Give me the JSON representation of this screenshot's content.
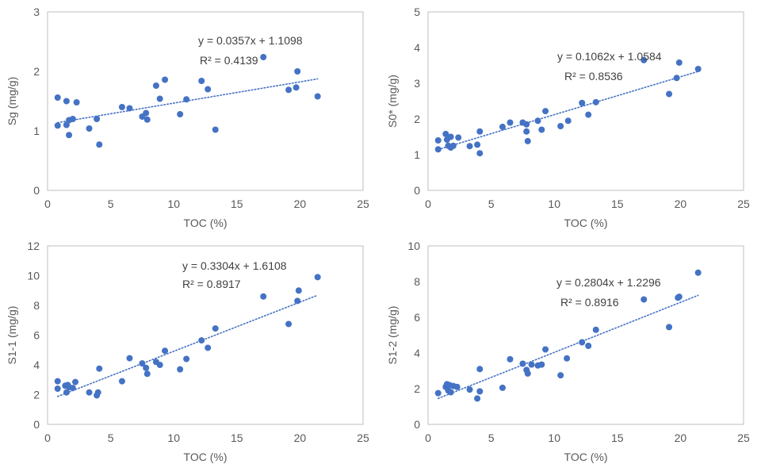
{
  "chart_data": [
    {
      "type": "scatter",
      "ylabel": "Sg (mg/g)",
      "xlabel": "TOC (%)",
      "xlim": [
        0,
        25
      ],
      "ylim": [
        0,
        3
      ],
      "xticks": [
        "0",
        "5",
        "10",
        "15",
        "20",
        "25"
      ],
      "yticks": [
        "0",
        "1",
        "2",
        "3"
      ],
      "trendline": {
        "slope": 0.0357,
        "intercept": 1.1098,
        "x_range": [
          0.8,
          21.4
        ],
        "style": "dotted"
      },
      "equation": "y = 0.0357x + 1.1098",
      "r2": "R² = 0.4139",
      "points": [
        [
          0.8,
          1.56
        ],
        [
          0.8,
          1.09
        ],
        [
          1.5,
          1.5
        ],
        [
          1.5,
          1.1
        ],
        [
          1.7,
          0.93
        ],
        [
          1.7,
          1.18
        ],
        [
          2.0,
          1.2
        ],
        [
          2.3,
          1.48
        ],
        [
          3.3,
          1.04
        ],
        [
          3.9,
          1.2
        ],
        [
          4.1,
          0.77
        ],
        [
          5.9,
          1.4
        ],
        [
          6.5,
          1.38
        ],
        [
          7.5,
          1.24
        ],
        [
          7.8,
          1.3
        ],
        [
          7.9,
          1.19
        ],
        [
          8.6,
          1.76
        ],
        [
          8.9,
          1.54
        ],
        [
          9.3,
          1.86
        ],
        [
          10.5,
          1.28
        ],
        [
          11.0,
          1.53
        ],
        [
          12.2,
          1.84
        ],
        [
          12.7,
          1.7
        ],
        [
          13.3,
          1.02
        ],
        [
          17.1,
          2.24
        ],
        [
          19.1,
          1.69
        ],
        [
          19.7,
          1.73
        ],
        [
          19.8,
          2.0
        ],
        [
          21.4,
          1.58
        ]
      ],
      "color": "#4472C4"
    },
    {
      "type": "scatter",
      "ylabel": "S0* (mg/g)",
      "xlabel": "TOC (%)",
      "xlim": [
        0,
        25
      ],
      "ylim": [
        0,
        5
      ],
      "xticks": [
        "0",
        "5",
        "10",
        "15",
        "20",
        "25"
      ],
      "yticks": [
        "0",
        "1",
        "2",
        "3",
        "4",
        "5"
      ],
      "trendline": {
        "slope": 0.1062,
        "intercept": 1.0584,
        "x_range": [
          0.8,
          21.4
        ],
        "style": "dotted"
      },
      "equation": "y = 0.1062x + 1.0584",
      "r2": "R² = 0.8536",
      "points": [
        [
          0.8,
          1.4
        ],
        [
          0.8,
          1.15
        ],
        [
          1.4,
          1.58
        ],
        [
          1.5,
          1.42
        ],
        [
          1.6,
          1.25
        ],
        [
          1.8,
          1.5
        ],
        [
          1.8,
          1.2
        ],
        [
          2.0,
          1.25
        ],
        [
          2.4,
          1.48
        ],
        [
          3.3,
          1.24
        ],
        [
          3.9,
          1.28
        ],
        [
          4.1,
          1.04
        ],
        [
          4.1,
          1.65
        ],
        [
          5.9,
          1.78
        ],
        [
          6.5,
          1.9
        ],
        [
          7.5,
          1.9
        ],
        [
          7.8,
          1.65
        ],
        [
          7.8,
          1.85
        ],
        [
          7.9,
          1.38
        ],
        [
          8.7,
          1.95
        ],
        [
          9.0,
          1.7
        ],
        [
          9.3,
          2.22
        ],
        [
          10.5,
          1.8
        ],
        [
          11.1,
          1.95
        ],
        [
          12.2,
          2.45
        ],
        [
          12.7,
          2.12
        ],
        [
          13.3,
          2.47
        ],
        [
          17.1,
          3.65
        ],
        [
          19.1,
          2.7
        ],
        [
          19.7,
          3.15
        ],
        [
          19.9,
          3.58
        ],
        [
          21.4,
          3.4
        ]
      ],
      "color": "#4472C4"
    },
    {
      "type": "scatter",
      "ylabel": "S1-1 (mg/g)",
      "xlabel": "TOC (%)",
      "xlim": [
        0,
        25
      ],
      "ylim": [
        0,
        12
      ],
      "xticks": [
        "0",
        "5",
        "10",
        "15",
        "20",
        "25"
      ],
      "yticks": [
        "0",
        "2",
        "4",
        "6",
        "8",
        "10",
        "12"
      ],
      "trendline": {
        "slope": 0.3304,
        "intercept": 1.6108,
        "x_range": [
          0.8,
          21.4
        ],
        "style": "dotted"
      },
      "equation": "y = 0.3304x + 1.6108",
      "r2": "R² = 0.8917",
      "points": [
        [
          0.8,
          2.9
        ],
        [
          0.8,
          2.4
        ],
        [
          1.4,
          2.6
        ],
        [
          1.5,
          2.15
        ],
        [
          1.6,
          2.65
        ],
        [
          1.7,
          2.5
        ],
        [
          2.0,
          2.45
        ],
        [
          2.2,
          2.85
        ],
        [
          3.3,
          2.15
        ],
        [
          3.9,
          1.95
        ],
        [
          4.0,
          2.15
        ],
        [
          4.1,
          3.75
        ],
        [
          5.9,
          2.9
        ],
        [
          6.5,
          4.45
        ],
        [
          7.5,
          4.1
        ],
        [
          7.8,
          3.8
        ],
        [
          7.9,
          3.4
        ],
        [
          8.6,
          4.2
        ],
        [
          8.9,
          4.0
        ],
        [
          9.3,
          4.95
        ],
        [
          10.5,
          3.7
        ],
        [
          11.0,
          4.4
        ],
        [
          12.2,
          5.65
        ],
        [
          12.7,
          5.15
        ],
        [
          13.3,
          6.45
        ],
        [
          17.1,
          8.6
        ],
        [
          19.1,
          6.75
        ],
        [
          19.8,
          8.3
        ],
        [
          19.9,
          9.0
        ],
        [
          21.4,
          9.9
        ]
      ],
      "color": "#4472C4"
    },
    {
      "type": "scatter",
      "ylabel": "S1-2 (mg/g)",
      "xlabel": "TOC (%)",
      "xlim": [
        0,
        25
      ],
      "ylim": [
        0,
        10
      ],
      "xticks": [
        "0",
        "5",
        "10",
        "15",
        "20",
        "25"
      ],
      "yticks": [
        "0",
        "2",
        "4",
        "6",
        "8",
        "10"
      ],
      "trendline": {
        "slope": 0.2804,
        "intercept": 1.2296,
        "x_range": [
          0.8,
          21.4
        ],
        "style": "dotted"
      },
      "equation": "y = 0.2804x + 1.2296",
      "r2": "R² = 0.8916",
      "points": [
        [
          0.8,
          1.75
        ],
        [
          1.4,
          2.1
        ],
        [
          1.5,
          2.25
        ],
        [
          1.6,
          1.9
        ],
        [
          1.7,
          2.2
        ],
        [
          1.8,
          1.8
        ],
        [
          2.0,
          2.15
        ],
        [
          2.3,
          2.1
        ],
        [
          3.3,
          1.95
        ],
        [
          3.9,
          1.45
        ],
        [
          4.1,
          1.85
        ],
        [
          4.1,
          3.1
        ],
        [
          5.9,
          2.05
        ],
        [
          6.5,
          3.65
        ],
        [
          7.5,
          3.4
        ],
        [
          7.8,
          3.05
        ],
        [
          7.9,
          2.85
        ],
        [
          8.2,
          3.35
        ],
        [
          8.7,
          3.3
        ],
        [
          9.0,
          3.35
        ],
        [
          9.3,
          4.2
        ],
        [
          10.5,
          2.75
        ],
        [
          11.0,
          3.7
        ],
        [
          12.2,
          4.6
        ],
        [
          12.7,
          4.4
        ],
        [
          13.3,
          5.3
        ],
        [
          17.1,
          7.0
        ],
        [
          19.1,
          5.45
        ],
        [
          19.8,
          7.1
        ],
        [
          19.9,
          7.15
        ],
        [
          21.4,
          8.5
        ]
      ],
      "color": "#4472C4"
    }
  ]
}
